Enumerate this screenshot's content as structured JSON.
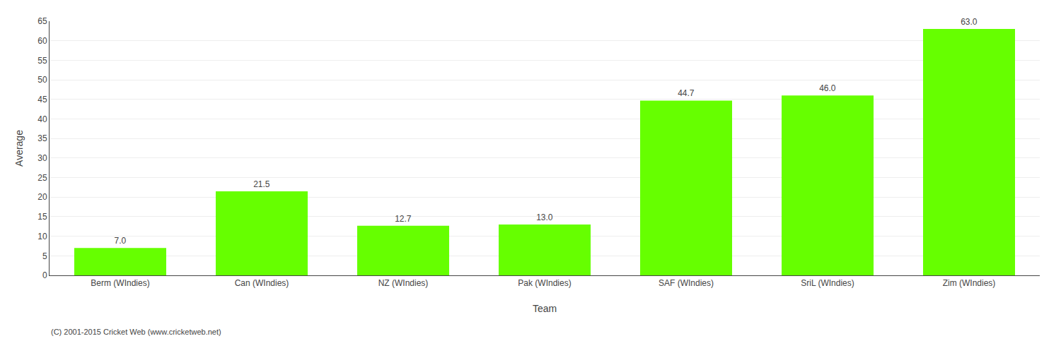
{
  "chart_data": {
    "type": "bar",
    "categories": [
      "Berm (WIndies)",
      "Can (WIndies)",
      "NZ (WIndies)",
      "Pak (WIndies)",
      "SAF (WIndies)",
      "SriL (WIndies)",
      "Zim (WIndies)"
    ],
    "values": [
      7.0,
      21.5,
      12.7,
      13.0,
      44.7,
      46.0,
      63.0
    ],
    "value_labels": [
      "7.0",
      "21.5",
      "12.7",
      "13.0",
      "44.7",
      "46.0",
      "63.0"
    ],
    "data_labels": true,
    "color": "#66ff00",
    "xlabel": "Team",
    "ylabel": "Average",
    "ylim": [
      0,
      65
    ],
    "yticks": [
      0,
      5,
      10,
      15,
      20,
      25,
      30,
      35,
      40,
      45,
      50,
      55,
      60,
      65
    ],
    "grid": true,
    "annotations": [
      "(C) 2001-2015 Cricket Web (www.cricketweb.net)"
    ]
  }
}
